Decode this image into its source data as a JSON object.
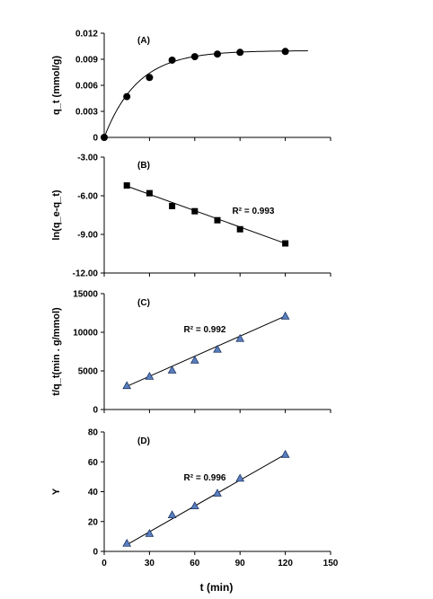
{
  "chart_data": [
    {
      "type": "scatter",
      "panel_label": "(A)",
      "ylabel": "q_t (mmol/g)",
      "ylim": [
        0,
        0.012
      ],
      "yticks": [
        "0",
        "0.003",
        "0.006",
        "0.009",
        "0.012"
      ],
      "xlim": [
        0,
        150
      ],
      "marker": "circle",
      "marker_color": "#000000",
      "x": [
        0,
        15,
        30,
        45,
        60,
        75,
        90,
        120
      ],
      "y": [
        0,
        0.0047,
        0.0069,
        0.0089,
        0.0093,
        0.0096,
        0.0098,
        0.0099
      ],
      "fit": {
        "kind": "pseudo-first-order",
        "qe": 0.01,
        "k1": 0.045,
        "x_max": 135
      },
      "r2_label": ""
    },
    {
      "type": "scatter",
      "panel_label": "(B)",
      "ylabel": "ln(q_e-q_t)",
      "ylim": [
        -12,
        -3
      ],
      "yticks": [
        "-12.00",
        "-9.00",
        "-6.00",
        "-3.00"
      ],
      "xlim": [
        0,
        150
      ],
      "marker": "square",
      "marker_color": "#000000",
      "x": [
        15,
        30,
        45,
        60,
        75,
        90,
        120
      ],
      "y": [
        -5.2,
        -5.8,
        -6.8,
        -7.2,
        -7.9,
        -8.6,
        -9.7
      ],
      "fit": {
        "kind": "linear",
        "x0": 15,
        "y0": -5.25,
        "x1": 120,
        "y1": -9.7
      },
      "r2_label": "R² = 0.993"
    },
    {
      "type": "scatter",
      "panel_label": "(C)",
      "ylabel": "t/q_t(min . g/mmol)",
      "ylim": [
        0,
        15000
      ],
      "yticks": [
        "0",
        "5000",
        "10000",
        "15000"
      ],
      "xlim": [
        0,
        150
      ],
      "marker": "triangle",
      "marker_color": "#5a7fbf",
      "x": [
        15,
        30,
        45,
        60,
        75,
        90,
        120
      ],
      "y": [
        3100,
        4300,
        5100,
        6400,
        7800,
        9200,
        12100
      ],
      "fit": {
        "kind": "linear",
        "x0": 15,
        "y0": 3000,
        "x1": 120,
        "y1": 12100
      },
      "r2_label": "R² = 0.992"
    },
    {
      "type": "scatter",
      "panel_label": "(D)",
      "ylabel": "Y",
      "ylim": [
        0,
        80
      ],
      "yticks": [
        "0",
        "20",
        "40",
        "60",
        "80"
      ],
      "xlim": [
        0,
        150
      ],
      "xticks": [
        "0",
        "30",
        "60",
        "90",
        "120",
        "150"
      ],
      "xlabel": "t (min)",
      "marker": "triangle",
      "marker_color": "#5a7fbf",
      "x": [
        15,
        30,
        45,
        60,
        75,
        90,
        120
      ],
      "y": [
        5.5,
        12,
        24.5,
        30.5,
        39,
        49,
        65
      ],
      "fit": {
        "kind": "linear",
        "x0": 15,
        "y0": 4.5,
        "x1": 120,
        "y1": 65
      },
      "r2_label": "R² = 0.996"
    }
  ]
}
